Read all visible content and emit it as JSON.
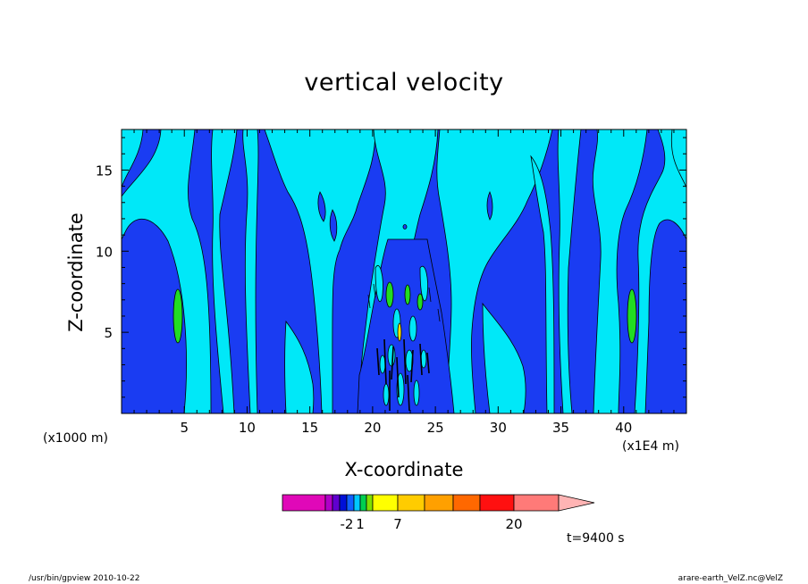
{
  "chart_data": {
    "type": "heatmap",
    "title": "vertical velocity",
    "xlabel": "X-coordinate",
    "ylabel": "Z-coordinate",
    "x_unit_left": "(x1000 m)",
    "x_unit_right": "(x1E4 m)",
    "x_ticks": [
      "5",
      "10",
      "15",
      "20",
      "25",
      "30",
      "35",
      "40"
    ],
    "x_tick_values": [
      5,
      10,
      15,
      20,
      25,
      30,
      35,
      40
    ],
    "y_ticks": [
      "5",
      "10",
      "15"
    ],
    "y_tick_values": [
      5,
      10,
      15
    ],
    "xlim": [
      0,
      45
    ],
    "ylim": [
      0,
      17.5
    ],
    "colorbar": {
      "colors": [
        "#e008b8",
        "#b000c8",
        "#6000d0",
        "#0010d8",
        "#1060ff",
        "#00c8ff",
        "#00d050",
        "#80e000",
        "#ffff00",
        "#ffcc00",
        "#ffa000",
        "#ff6800",
        "#ff1010",
        "#ff7a78",
        "#ffb4b4"
      ],
      "tick_labels": [
        "-2",
        "1",
        "7",
        "20"
      ]
    },
    "fill_colors": {
      "background": "#1a3cf2",
      "light": "#00e8f8",
      "positive": "#22dd22",
      "high": "#ffe000",
      "contour": "#000000"
    }
  },
  "time_label": "t=9400 s",
  "footer_left": "/usr/bin/gpview   2010-10-22",
  "footer_right": "arare-earth_VelZ.nc@VelZ"
}
